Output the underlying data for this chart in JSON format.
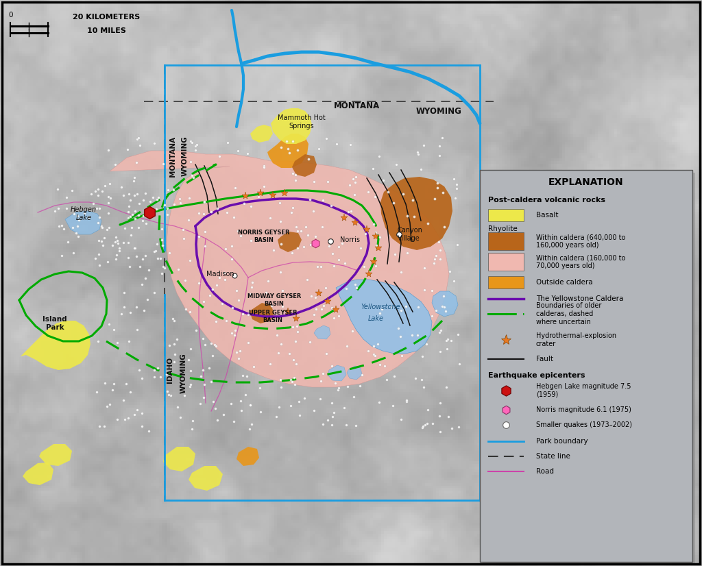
{
  "fig_width": 10.24,
  "fig_height": 8.26,
  "colors": {
    "basalt": "#ede84a",
    "rhyolite_old": "#b8651a",
    "rhyolite_mid": "#f0b8b0",
    "rhyolite_outside": "#e8961a",
    "yellowstone_caldera": "#6a0dad",
    "older_caldera_solid": "#00aa00",
    "older_caldera_dash": "#00aa00",
    "park_boundary": "#1a9de0",
    "state_line_color": "#333333",
    "road": "#cc44aa",
    "hydrothermal": "#e87820",
    "fault": "#111111",
    "hebgen_lake": "#cc1111",
    "norris_eq": "#ff66bb",
    "small_quake": "#ffffff",
    "yellowstone_lake": "#90c0e8",
    "terrain_base": "#b8b8b8",
    "legend_bg": "#b0b2b8"
  },
  "explanation_title": "EXPLANATION",
  "map_xlim": [
    0,
    1
  ],
  "map_ylim": [
    0,
    1
  ]
}
